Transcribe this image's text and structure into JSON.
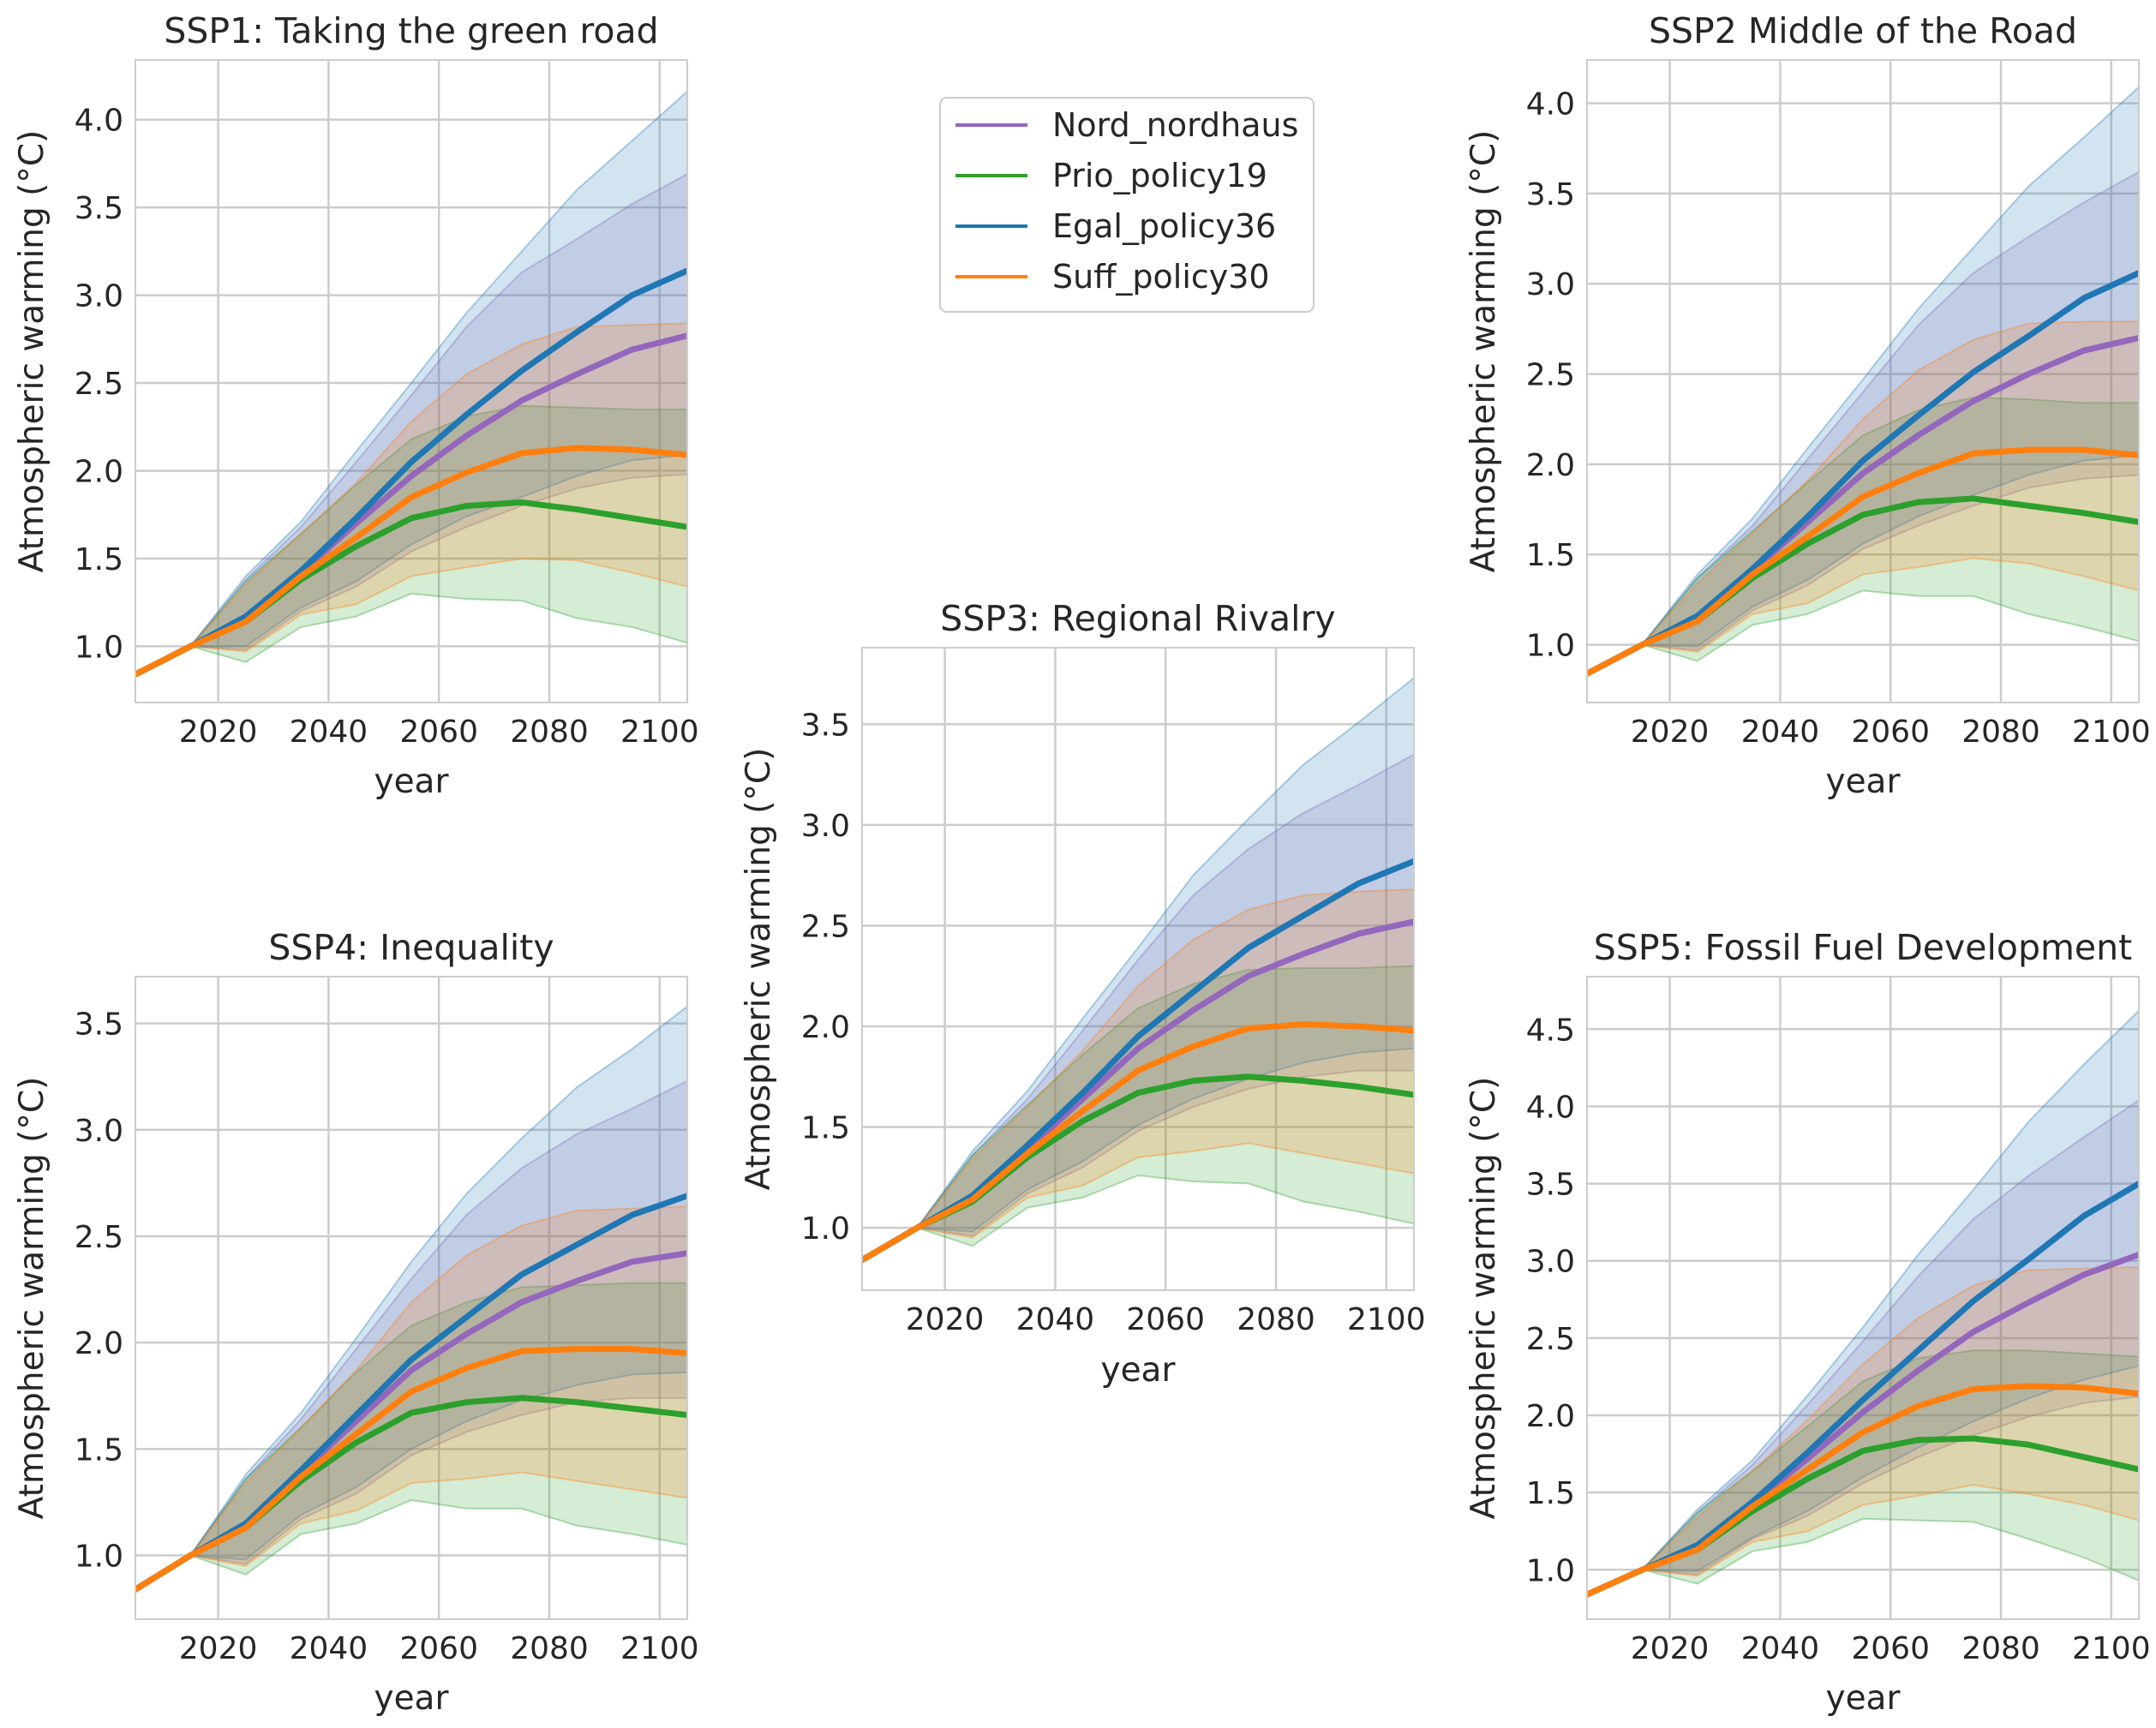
{
  "colors": {
    "Nord_nordhaus": "#9467bd",
    "Prio_policy19": "#2ca02c",
    "Egal_policy36": "#1f77b4",
    "Suff_policy30": "#ff7f0e"
  },
  "legend": {
    "entries": [
      "Nord_nordhaus",
      "Prio_policy19",
      "Egal_policy36",
      "Suff_policy30"
    ]
  },
  "chart_data": [
    {
      "id": "ssp1",
      "type": "line",
      "title": "SSP1: Taking the green road",
      "xlabel": "year",
      "ylabel": "Atmospheric warming (°C)",
      "xlim": [
        2005,
        2105
      ],
      "ylim": [
        0.68,
        4.34
      ],
      "xticks": [
        "2020",
        "2040",
        "2060",
        "2080",
        "2100"
      ],
      "yticks": [
        "1.0",
        "1.5",
        "2.0",
        "2.5",
        "3.0",
        "3.5",
        "4.0"
      ],
      "x": [
        2005,
        2015,
        2025,
        2035,
        2045,
        2055,
        2065,
        2075,
        2085,
        2095,
        2105
      ],
      "series": [
        {
          "name": "Nord_nordhaus",
          "values": [
            0.84,
            1.0,
            1.16,
            1.42,
            1.7,
            1.97,
            2.2,
            2.4,
            2.55,
            2.69,
            2.77
          ],
          "lower": [
            0.84,
            1.0,
            0.98,
            1.2,
            1.34,
            1.54,
            1.68,
            1.8,
            1.9,
            1.96,
            1.98
          ],
          "upper": [
            0.84,
            1.0,
            1.38,
            1.68,
            2.05,
            2.43,
            2.82,
            3.13,
            3.32,
            3.52,
            3.69
          ]
        },
        {
          "name": "Prio_policy19",
          "values": [
            0.84,
            1.0,
            1.14,
            1.38,
            1.57,
            1.73,
            1.8,
            1.82,
            1.78,
            1.73,
            1.68
          ],
          "lower": [
            0.84,
            1.0,
            0.91,
            1.11,
            1.17,
            1.3,
            1.27,
            1.26,
            1.16,
            1.11,
            1.02
          ],
          "upper": [
            0.84,
            1.0,
            1.37,
            1.64,
            1.92,
            2.18,
            2.31,
            2.37,
            2.36,
            2.35,
            2.35
          ]
        },
        {
          "name": "Egal_policy36",
          "values": [
            0.84,
            1.0,
            1.17,
            1.43,
            1.73,
            2.05,
            2.32,
            2.57,
            2.79,
            3.0,
            3.14
          ],
          "lower": [
            0.84,
            1.0,
            1.0,
            1.22,
            1.37,
            1.58,
            1.74,
            1.85,
            1.97,
            2.06,
            2.09
          ],
          "upper": [
            0.84,
            1.0,
            1.4,
            1.71,
            2.11,
            2.5,
            2.9,
            3.25,
            3.6,
            3.88,
            4.16
          ]
        },
        {
          "name": "Suff_policy30",
          "values": [
            0.84,
            1.0,
            1.14,
            1.4,
            1.62,
            1.85,
            1.99,
            2.1,
            2.13,
            2.12,
            2.09
          ],
          "lower": [
            0.84,
            1.0,
            0.97,
            1.18,
            1.24,
            1.4,
            1.45,
            1.5,
            1.49,
            1.42,
            1.34
          ],
          "upper": [
            0.84,
            1.0,
            1.35,
            1.64,
            1.93,
            2.28,
            2.55,
            2.72,
            2.82,
            2.83,
            2.84
          ]
        }
      ]
    },
    {
      "id": "ssp2",
      "type": "line",
      "title": "SSP2 Middle of the Road",
      "xlabel": "year",
      "ylabel": "Atmospheric warming (°C)",
      "xlim": [
        2005,
        2105
      ],
      "ylim": [
        0.68,
        4.24
      ],
      "xticks": [
        "2020",
        "2040",
        "2060",
        "2080",
        "2100"
      ],
      "yticks": [
        "1.0",
        "1.5",
        "2.0",
        "2.5",
        "3.0",
        "3.5",
        "4.0"
      ],
      "x": [
        2005,
        2015,
        2025,
        2035,
        2045,
        2055,
        2065,
        2075,
        2085,
        2095,
        2105
      ],
      "series": [
        {
          "name": "Nord_nordhaus",
          "values": [
            0.84,
            1.0,
            1.15,
            1.41,
            1.68,
            1.95,
            2.16,
            2.35,
            2.5,
            2.63,
            2.7
          ],
          "lower": [
            0.84,
            1.0,
            0.97,
            1.19,
            1.33,
            1.53,
            1.66,
            1.77,
            1.87,
            1.92,
            1.94
          ],
          "upper": [
            0.84,
            1.0,
            1.37,
            1.66,
            2.03,
            2.4,
            2.77,
            3.06,
            3.26,
            3.45,
            3.62
          ]
        },
        {
          "name": "Prio_policy19",
          "values": [
            0.84,
            1.0,
            1.13,
            1.37,
            1.56,
            1.72,
            1.79,
            1.81,
            1.77,
            1.73,
            1.68
          ],
          "lower": [
            0.84,
            1.0,
            0.91,
            1.11,
            1.17,
            1.3,
            1.27,
            1.27,
            1.17,
            1.1,
            1.02
          ],
          "upper": [
            0.84,
            1.0,
            1.37,
            1.63,
            1.9,
            2.16,
            2.3,
            2.37,
            2.36,
            2.34,
            2.34
          ]
        },
        {
          "name": "Egal_policy36",
          "values": [
            0.84,
            1.0,
            1.16,
            1.42,
            1.71,
            2.02,
            2.27,
            2.51,
            2.71,
            2.92,
            3.06
          ],
          "lower": [
            0.84,
            1.0,
            0.99,
            1.21,
            1.36,
            1.56,
            1.71,
            1.83,
            1.94,
            2.02,
            2.05
          ],
          "upper": [
            0.84,
            1.0,
            1.39,
            1.7,
            2.09,
            2.47,
            2.86,
            3.2,
            3.54,
            3.81,
            4.09
          ]
        },
        {
          "name": "Suff_policy30",
          "values": [
            0.84,
            1.0,
            1.13,
            1.39,
            1.6,
            1.82,
            1.95,
            2.06,
            2.08,
            2.08,
            2.05
          ],
          "lower": [
            0.84,
            1.0,
            0.96,
            1.17,
            1.23,
            1.39,
            1.43,
            1.48,
            1.45,
            1.38,
            1.3
          ],
          "upper": [
            0.84,
            1.0,
            1.34,
            1.62,
            1.91,
            2.25,
            2.52,
            2.69,
            2.78,
            2.79,
            2.79
          ]
        }
      ]
    },
    {
      "id": "ssp3",
      "type": "line",
      "title": "SSP3: Regional Rivalry",
      "xlabel": "year",
      "ylabel": "Atmospheric warming (°C)",
      "xlim": [
        2005,
        2105
      ],
      "ylim": [
        0.69,
        3.88
      ],
      "xticks": [
        "2020",
        "2040",
        "2060",
        "2080",
        "2100"
      ],
      "yticks": [
        "1.0",
        "1.5",
        "2.0",
        "2.5",
        "3.0",
        "3.5"
      ],
      "x": [
        2005,
        2015,
        2025,
        2035,
        2045,
        2055,
        2065,
        2075,
        2085,
        2095,
        2105
      ],
      "series": [
        {
          "name": "Nord_nordhaus",
          "values": [
            0.84,
            1.0,
            1.15,
            1.39,
            1.64,
            1.89,
            2.08,
            2.25,
            2.36,
            2.46,
            2.52
          ],
          "lower": [
            0.84,
            1.0,
            0.96,
            1.17,
            1.3,
            1.48,
            1.6,
            1.69,
            1.75,
            1.78,
            1.78
          ],
          "upper": [
            0.84,
            1.0,
            1.36,
            1.64,
            1.98,
            2.33,
            2.65,
            2.88,
            3.06,
            3.2,
            3.35
          ]
        },
        {
          "name": "Prio_policy19",
          "values": [
            0.84,
            1.0,
            1.13,
            1.35,
            1.53,
            1.67,
            1.73,
            1.75,
            1.73,
            1.7,
            1.66
          ],
          "lower": [
            0.84,
            1.0,
            0.91,
            1.1,
            1.15,
            1.26,
            1.23,
            1.22,
            1.13,
            1.08,
            1.02
          ],
          "upper": [
            0.84,
            1.0,
            1.36,
            1.61,
            1.86,
            2.09,
            2.21,
            2.28,
            2.29,
            2.29,
            2.3
          ]
        },
        {
          "name": "Egal_policy36",
          "values": [
            0.84,
            1.0,
            1.16,
            1.41,
            1.67,
            1.95,
            2.17,
            2.39,
            2.55,
            2.71,
            2.82
          ],
          "lower": [
            0.84,
            1.0,
            0.98,
            1.19,
            1.33,
            1.51,
            1.64,
            1.74,
            1.82,
            1.87,
            1.89
          ],
          "upper": [
            0.84,
            1.0,
            1.38,
            1.68,
            2.04,
            2.39,
            2.75,
            3.03,
            3.3,
            3.51,
            3.73
          ]
        },
        {
          "name": "Suff_policy30",
          "values": [
            0.84,
            1.0,
            1.14,
            1.37,
            1.58,
            1.78,
            1.9,
            1.99,
            2.01,
            2.0,
            1.98
          ],
          "lower": [
            0.84,
            1.0,
            0.95,
            1.15,
            1.21,
            1.35,
            1.38,
            1.42,
            1.37,
            1.32,
            1.27
          ],
          "upper": [
            0.84,
            1.0,
            1.34,
            1.6,
            1.88,
            2.2,
            2.43,
            2.58,
            2.65,
            2.67,
            2.68
          ]
        }
      ]
    },
    {
      "id": "ssp4",
      "type": "line",
      "title": "SSP4: Inequality",
      "xlabel": "year",
      "ylabel": "Atmospheric warming (°C)",
      "xlim": [
        2005,
        2105
      ],
      "ylim": [
        0.7,
        3.72
      ],
      "xticks": [
        "2020",
        "2040",
        "2060",
        "2080",
        "2100"
      ],
      "yticks": [
        "1.0",
        "1.5",
        "2.0",
        "2.5",
        "3.0",
        "3.5"
      ],
      "x": [
        2005,
        2015,
        2025,
        2035,
        2045,
        2055,
        2065,
        2075,
        2085,
        2095,
        2105
      ],
      "series": [
        {
          "name": "Nord_nordhaus",
          "values": [
            0.84,
            1.0,
            1.14,
            1.39,
            1.63,
            1.87,
            2.04,
            2.19,
            2.29,
            2.38,
            2.42
          ],
          "lower": [
            0.84,
            1.0,
            0.96,
            1.17,
            1.29,
            1.47,
            1.58,
            1.66,
            1.72,
            1.74,
            1.74
          ],
          "upper": [
            0.84,
            1.0,
            1.36,
            1.64,
            1.97,
            2.3,
            2.6,
            2.82,
            2.98,
            3.1,
            3.23
          ]
        },
        {
          "name": "Prio_policy19",
          "values": [
            0.84,
            1.0,
            1.13,
            1.35,
            1.53,
            1.67,
            1.72,
            1.74,
            1.72,
            1.69,
            1.66
          ],
          "lower": [
            0.84,
            1.0,
            0.91,
            1.1,
            1.15,
            1.26,
            1.22,
            1.22,
            1.14,
            1.1,
            1.05
          ],
          "upper": [
            0.84,
            1.0,
            1.36,
            1.6,
            1.86,
            2.08,
            2.19,
            2.26,
            2.27,
            2.28,
            2.28
          ]
        },
        {
          "name": "Egal_policy36",
          "values": [
            0.84,
            1.0,
            1.15,
            1.4,
            1.66,
            1.92,
            2.12,
            2.32,
            2.46,
            2.6,
            2.69
          ],
          "lower": [
            0.84,
            1.0,
            0.98,
            1.19,
            1.32,
            1.5,
            1.63,
            1.73,
            1.8,
            1.85,
            1.86
          ],
          "upper": [
            0.84,
            1.0,
            1.38,
            1.67,
            2.02,
            2.38,
            2.7,
            2.96,
            3.2,
            3.38,
            3.58
          ]
        },
        {
          "name": "Suff_policy30",
          "values": [
            0.84,
            1.0,
            1.13,
            1.37,
            1.57,
            1.77,
            1.88,
            1.96,
            1.97,
            1.97,
            1.95
          ],
          "lower": [
            0.84,
            1.0,
            0.95,
            1.15,
            1.21,
            1.34,
            1.36,
            1.39,
            1.35,
            1.31,
            1.27
          ],
          "upper": [
            0.84,
            1.0,
            1.34,
            1.6,
            1.87,
            2.19,
            2.41,
            2.55,
            2.62,
            2.63,
            2.64
          ]
        }
      ]
    },
    {
      "id": "ssp5",
      "type": "line",
      "title": "SSP5: Fossil Fuel Development",
      "xlabel": "year",
      "ylabel": "Atmospheric warming (°C)",
      "xlim": [
        2005,
        2105
      ],
      "ylim": [
        0.68,
        4.84
      ],
      "xticks": [
        "2020",
        "2040",
        "2060",
        "2080",
        "2100"
      ],
      "yticks": [
        "1.0",
        "1.5",
        "2.0",
        "2.5",
        "3.0",
        "3.5",
        "4.0",
        "4.5"
      ],
      "x": [
        2005,
        2015,
        2025,
        2035,
        2045,
        2055,
        2065,
        2075,
        2085,
        2095,
        2105
      ],
      "series": [
        {
          "name": "Nord_nordhaus",
          "values": [
            0.84,
            1.0,
            1.15,
            1.43,
            1.72,
            2.02,
            2.29,
            2.54,
            2.73,
            2.91,
            3.04
          ],
          "lower": [
            0.84,
            1.0,
            0.97,
            1.2,
            1.35,
            1.56,
            1.73,
            1.87,
            1.99,
            2.08,
            2.12
          ],
          "upper": [
            0.84,
            1.0,
            1.37,
            1.68,
            2.07,
            2.48,
            2.9,
            3.27,
            3.55,
            3.8,
            4.04
          ]
        },
        {
          "name": "Prio_policy19",
          "values": [
            0.84,
            1.0,
            1.13,
            1.38,
            1.59,
            1.77,
            1.84,
            1.85,
            1.81,
            1.73,
            1.65
          ],
          "lower": [
            0.84,
            1.0,
            0.91,
            1.12,
            1.18,
            1.33,
            1.32,
            1.31,
            1.2,
            1.08,
            0.93
          ],
          "upper": [
            0.84,
            1.0,
            1.37,
            1.64,
            1.93,
            2.22,
            2.37,
            2.42,
            2.42,
            2.4,
            2.38
          ]
        },
        {
          "name": "Egal_policy36",
          "values": [
            0.84,
            1.0,
            1.16,
            1.44,
            1.76,
            2.1,
            2.42,
            2.74,
            3.01,
            3.29,
            3.5
          ],
          "lower": [
            0.84,
            1.0,
            0.99,
            1.21,
            1.38,
            1.6,
            1.79,
            1.96,
            2.11,
            2.23,
            2.32
          ],
          "upper": [
            0.84,
            1.0,
            1.39,
            1.71,
            2.13,
            2.57,
            3.04,
            3.46,
            3.9,
            4.27,
            4.62
          ]
        },
        {
          "name": "Suff_policy30",
          "values": [
            0.84,
            1.0,
            1.13,
            1.41,
            1.65,
            1.89,
            2.06,
            2.17,
            2.19,
            2.18,
            2.14
          ],
          "lower": [
            0.84,
            1.0,
            0.96,
            1.18,
            1.25,
            1.42,
            1.48,
            1.55,
            1.49,
            1.42,
            1.32
          ],
          "upper": [
            0.84,
            1.0,
            1.34,
            1.64,
            1.97,
            2.33,
            2.63,
            2.84,
            2.94,
            2.95,
            2.96
          ]
        }
      ]
    }
  ]
}
